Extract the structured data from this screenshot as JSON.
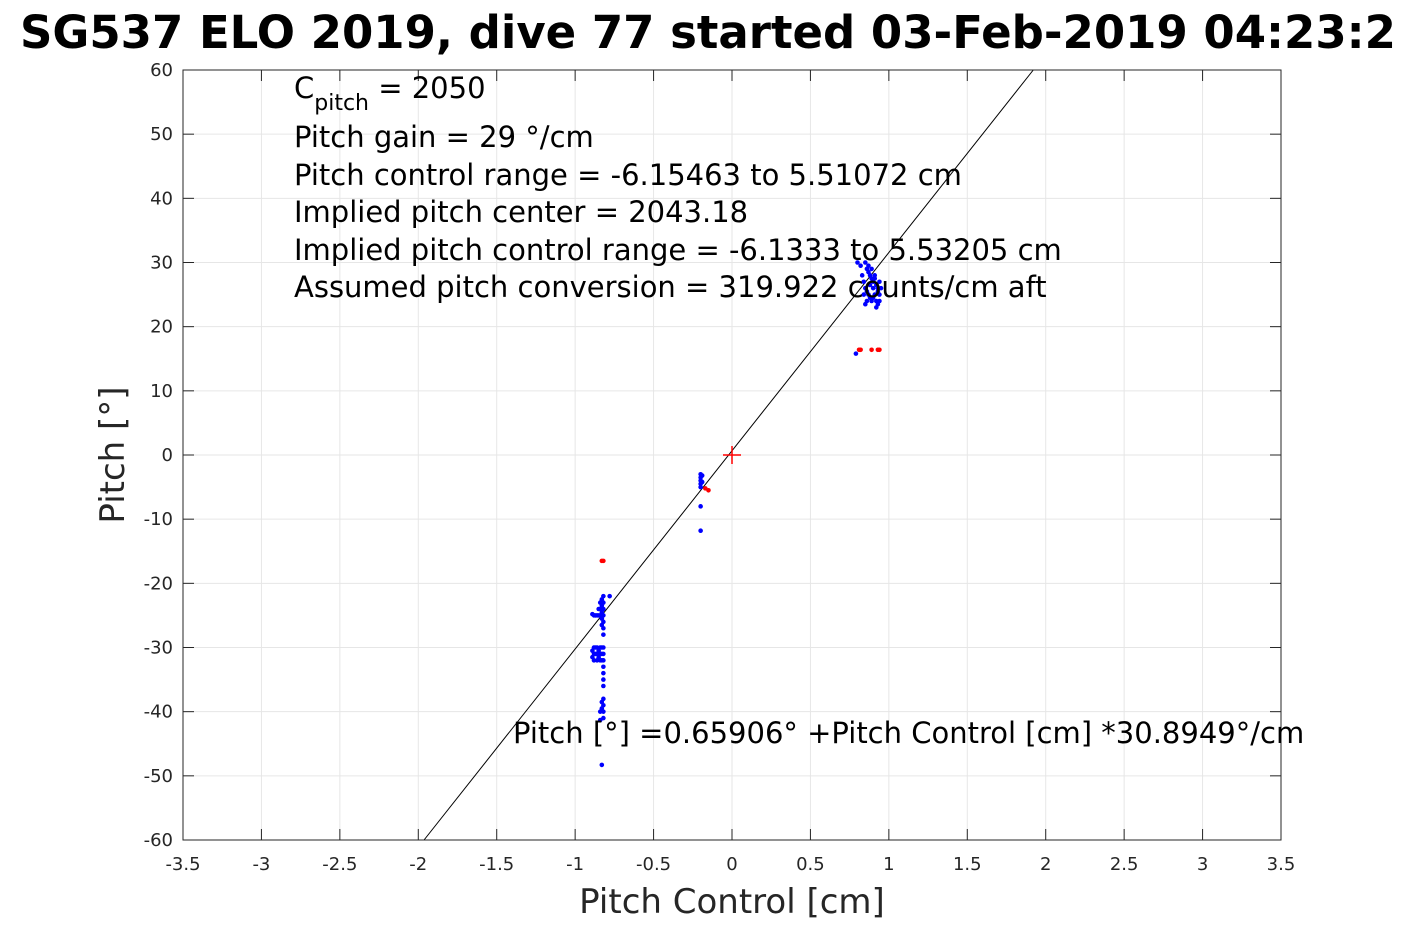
{
  "chart_data": {
    "type": "scatter",
    "title": "SG537 ELO 2019, dive 77 started 03-Feb-2019 04:23:2",
    "xlabel": "Pitch Control [cm]",
    "ylabel": "Pitch [°]",
    "xlim": [
      -3.5,
      3.5
    ],
    "ylim": [
      -60,
      60
    ],
    "xticks": [
      -3.5,
      -3,
      -2.5,
      -2,
      -1.5,
      -1,
      -0.5,
      0,
      0.5,
      1,
      1.5,
      2,
      2.5,
      3,
      3.5
    ],
    "xtick_labels": [
      "-3.5",
      "-3",
      "-2.5",
      "-2",
      "-1.5",
      "-1",
      "-0.5",
      "0",
      "0.5",
      "1",
      "1.5",
      "2",
      "2.5",
      "3",
      "3.5"
    ],
    "yticks": [
      -60,
      -50,
      -40,
      -30,
      -20,
      -10,
      0,
      10,
      20,
      30,
      40,
      50,
      60
    ],
    "ytick_labels": [
      "-60",
      "-50",
      "-40",
      "-30",
      "-20",
      "-10",
      "0",
      "10",
      "20",
      "30",
      "40",
      "50",
      "60"
    ],
    "grid": true,
    "fit_line": {
      "intercept": 0.65906,
      "slope": 30.8949,
      "color": "#000000"
    },
    "center_marker": {
      "x": 0,
      "y": 0,
      "color": "#ff0000"
    },
    "series": [
      {
        "color": "#0000ff",
        "points": [
          [
            0.85,
            30
          ],
          [
            0.86,
            29
          ],
          [
            0.87,
            28.5
          ],
          [
            0.88,
            28
          ],
          [
            0.89,
            27.5
          ],
          [
            0.9,
            27
          ],
          [
            0.91,
            27.5
          ],
          [
            0.92,
            26.5
          ],
          [
            0.93,
            26
          ],
          [
            0.94,
            27
          ],
          [
            0.84,
            27
          ],
          [
            0.85,
            26
          ],
          [
            0.86,
            25.5
          ],
          [
            0.87,
            25
          ],
          [
            0.88,
            24.5
          ],
          [
            0.89,
            24
          ],
          [
            0.9,
            24.5
          ],
          [
            0.91,
            25
          ],
          [
            0.92,
            24
          ],
          [
            0.93,
            23.5
          ],
          [
            0.94,
            25
          ],
          [
            0.83,
            28
          ],
          [
            0.82,
            29.5
          ],
          [
            0.8,
            30
          ],
          [
            0.87,
            29.5
          ],
          [
            0.89,
            29
          ],
          [
            0.91,
            28
          ],
          [
            0.92,
            23
          ],
          [
            0.88,
            26.5
          ],
          [
            0.9,
            26
          ],
          [
            0.86,
            24
          ],
          [
            0.85,
            23.5
          ],
          [
            0.94,
            24
          ],
          [
            0.93,
            25.5
          ],
          [
            0.84,
            25
          ],
          [
            0.95,
            26
          ],
          [
            0.79,
            15.8
          ],
          [
            -0.2,
            -3.0
          ],
          [
            -0.2,
            -3.5
          ],
          [
            -0.2,
            -4.0
          ],
          [
            -0.2,
            -4.5
          ],
          [
            -0.2,
            -5.0
          ],
          [
            -0.19,
            -3.2
          ],
          [
            -0.19,
            -4.2
          ],
          [
            -0.2,
            -8.0
          ],
          [
            -0.2,
            -11.8
          ],
          [
            -0.78,
            -22
          ],
          [
            -0.82,
            -22
          ],
          [
            -0.82,
            -23
          ],
          [
            -0.82,
            -24
          ],
          [
            -0.82,
            -25
          ],
          [
            -0.82,
            -26
          ],
          [
            -0.82,
            -27
          ],
          [
            -0.82,
            -28
          ],
          [
            -0.83,
            -22.5
          ],
          [
            -0.83,
            -23.5
          ],
          [
            -0.83,
            -24.5
          ],
          [
            -0.83,
            -25.5
          ],
          [
            -0.83,
            -26.5
          ],
          [
            -0.84,
            -23
          ],
          [
            -0.84,
            -24
          ],
          [
            -0.84,
            -25
          ],
          [
            -0.85,
            -24
          ],
          [
            -0.85,
            -25
          ],
          [
            -0.86,
            -25
          ],
          [
            -0.87,
            -25
          ],
          [
            -0.88,
            -25
          ],
          [
            -0.89,
            -24.8
          ],
          [
            -0.82,
            -30
          ],
          [
            -0.82,
            -31
          ],
          [
            -0.82,
            -32
          ],
          [
            -0.82,
            -33
          ],
          [
            -0.82,
            -34
          ],
          [
            -0.82,
            -35
          ],
          [
            -0.82,
            -36
          ],
          [
            -0.83,
            -30
          ],
          [
            -0.83,
            -31
          ],
          [
            -0.83,
            -32
          ],
          [
            -0.84,
            -30
          ],
          [
            -0.84,
            -31
          ],
          [
            -0.84,
            -32
          ],
          [
            -0.85,
            -30.5
          ],
          [
            -0.85,
            -31.5
          ],
          [
            -0.86,
            -30
          ],
          [
            -0.86,
            -31
          ],
          [
            -0.86,
            -32
          ],
          [
            -0.87,
            -30
          ],
          [
            -0.87,
            -31
          ],
          [
            -0.88,
            -30
          ],
          [
            -0.88,
            -31
          ],
          [
            -0.88,
            -32
          ],
          [
            -0.89,
            -30.5
          ],
          [
            -0.89,
            -31.5
          ],
          [
            -0.82,
            -38
          ],
          [
            -0.82,
            -39
          ],
          [
            -0.82,
            -40
          ],
          [
            -0.82,
            -41
          ],
          [
            -0.83,
            -38.5
          ],
          [
            -0.83,
            -39.5
          ],
          [
            -0.84,
            -40
          ],
          [
            -0.84,
            -41.3
          ],
          [
            -0.83,
            -48.3
          ]
        ]
      },
      {
        "color": "#ff0000",
        "points": [
          [
            0.81,
            16.4
          ],
          [
            0.82,
            16.4
          ],
          [
            0.89,
            16.4
          ],
          [
            0.93,
            16.4
          ],
          [
            0.94,
            16.4
          ],
          [
            -0.82,
            -16.5
          ],
          [
            -0.83,
            -16.5
          ],
          [
            -0.17,
            -5.2
          ],
          [
            -0.15,
            -5.5
          ]
        ]
      }
    ]
  },
  "annotations": {
    "c_pitch_symbol": "C",
    "c_pitch_subscript": "pitch",
    "c_pitch_value": " = 2050",
    "pitch_gain": "Pitch gain = 29 °/cm",
    "control_range": "Pitch control range = -6.15463 to 5.51072 cm",
    "implied_center": "Implied pitch center = 2043.18",
    "implied_range": "Implied pitch control range = -6.1333 to 5.53205 cm",
    "assumed_conversion": "Assumed pitch conversion = 319.922 counts/cm aft",
    "fit_equation": "Pitch [°] =0.65906° +Pitch Control [cm] *30.8949°/cm"
  }
}
